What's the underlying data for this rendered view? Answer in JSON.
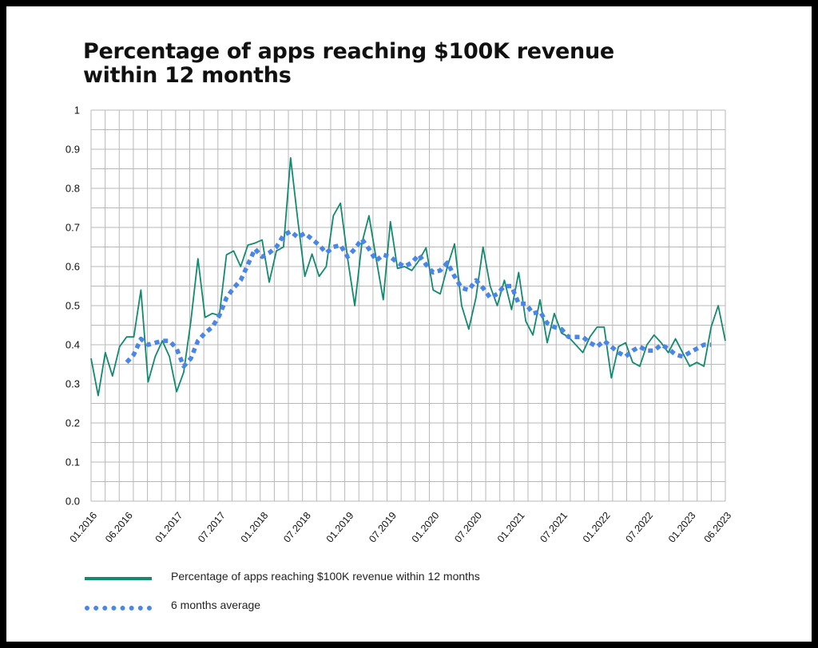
{
  "chart_data": {
    "type": "line",
    "title": "Percentage of apps reaching $100K revenue within 12 months",
    "xlabel": "",
    "ylabel": "",
    "ylim": [
      0,
      1
    ],
    "yticks": [
      "0.0",
      "0.1",
      "0.2",
      "0.3",
      "0.4",
      "0.5",
      "0.6",
      "0.7",
      "0.8",
      "0.9",
      "1"
    ],
    "xtick_labels": [
      "01.2016",
      "06.2016",
      "01.2017",
      "07.2017",
      "01.2018",
      "07.2018",
      "01.2019",
      "07.2019",
      "01.2020",
      "07.2020",
      "01.2021",
      "07.2021",
      "01.2022",
      "07.2022",
      "01.2023",
      "06.2023"
    ],
    "x_start": "01.2016",
    "x_end": "06.2023",
    "grid": true,
    "legend_position": "bottom-left",
    "series": [
      {
        "name": "Percentage of apps reaching $100K revenue within 12 months",
        "color": "#128a6e",
        "style": "solid",
        "values": [
          0.365,
          0.27,
          0.38,
          0.32,
          0.395,
          0.42,
          0.42,
          0.54,
          0.305,
          0.37,
          0.41,
          0.37,
          0.28,
          0.33,
          0.46,
          0.62,
          0.47,
          0.48,
          0.475,
          0.63,
          0.64,
          0.6,
          0.655,
          0.66,
          0.668,
          0.56,
          0.64,
          0.65,
          0.878,
          0.72,
          0.575,
          0.632,
          0.575,
          0.6,
          0.73,
          0.762,
          0.62,
          0.5,
          0.66,
          0.73,
          0.62,
          0.515,
          0.715,
          0.595,
          0.6,
          0.59,
          0.615,
          0.648,
          0.54,
          0.53,
          0.6,
          0.658,
          0.5,
          0.44,
          0.52,
          0.65,
          0.55,
          0.5,
          0.565,
          0.49,
          0.585,
          0.46,
          0.425,
          0.515,
          0.405,
          0.48,
          0.43,
          0.42,
          0.4,
          0.38,
          0.42,
          0.445,
          0.445,
          0.315,
          0.395,
          0.405,
          0.355,
          0.345,
          0.4,
          0.425,
          0.405,
          0.38,
          0.415,
          0.38,
          0.345,
          0.355,
          0.345,
          0.445,
          0.5,
          0.41
        ]
      },
      {
        "name": "6 months average",
        "color": "#4a86e8",
        "style": "dotted",
        "start_index": 5,
        "values": [
          0.355,
          0.375,
          0.415,
          0.4,
          0.405,
          0.41,
          0.41,
          0.39,
          0.345,
          0.365,
          0.41,
          0.43,
          0.445,
          0.475,
          0.52,
          0.545,
          0.565,
          0.605,
          0.645,
          0.625,
          0.635,
          0.65,
          0.68,
          0.69,
          0.675,
          0.685,
          0.67,
          0.655,
          0.635,
          0.65,
          0.655,
          0.625,
          0.645,
          0.67,
          0.645,
          0.615,
          0.63,
          0.625,
          0.61,
          0.6,
          0.61,
          0.63,
          0.605,
          0.585,
          0.59,
          0.61,
          0.575,
          0.545,
          0.54,
          0.565,
          0.545,
          0.52,
          0.53,
          0.55,
          0.55,
          0.505,
          0.505,
          0.48,
          0.485,
          0.455,
          0.445,
          0.44,
          0.42,
          0.42,
          0.42,
          0.405,
          0.395,
          0.41,
          0.395,
          0.38,
          0.37,
          0.385,
          0.395,
          0.385,
          0.385,
          0.4,
          0.39,
          0.375,
          0.37,
          0.38,
          0.39,
          0.4,
          0.4
        ]
      }
    ]
  }
}
